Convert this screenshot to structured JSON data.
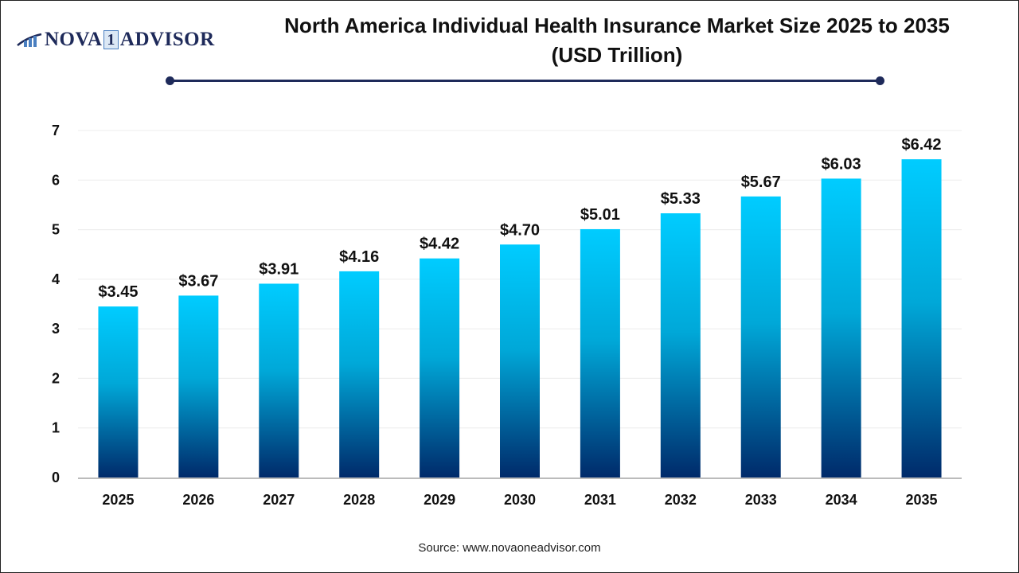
{
  "logo": {
    "text_left": "NOVA",
    "text_mid": "1",
    "text_right": "ADVISOR"
  },
  "title_line1": "North America Individual Health Insurance Market Size 2025 to 2035",
  "title_line2": "(USD Trillion)",
  "source": "Source: www.novaoneadvisor.com",
  "colors": {
    "bar_top": "#00ccff",
    "bar_bottom": "#002a6a",
    "accent": "#1e2a5a"
  },
  "chart_data": {
    "type": "bar",
    "title": "North America Individual Health Insurance Market Size 2025 to 2035 (USD Trillion)",
    "categories": [
      "2025",
      "2026",
      "2027",
      "2028",
      "2029",
      "2030",
      "2031",
      "2032",
      "2033",
      "2034",
      "2035"
    ],
    "values": [
      3.45,
      3.67,
      3.91,
      4.16,
      4.42,
      4.7,
      5.01,
      5.33,
      5.67,
      6.03,
      6.42
    ],
    "data_labels": [
      "$3.45",
      "$3.67",
      "$3.91",
      "$4.16",
      "$4.42",
      "$4.70",
      "$5.01",
      "$5.33",
      "$5.67",
      "$6.03",
      "$6.42"
    ],
    "yticks": [
      "0",
      "1",
      "2",
      "3",
      "4",
      "5",
      "6",
      "7"
    ],
    "xlabel": "",
    "ylabel": "",
    "ylim": [
      0,
      7
    ],
    "grid": true
  }
}
